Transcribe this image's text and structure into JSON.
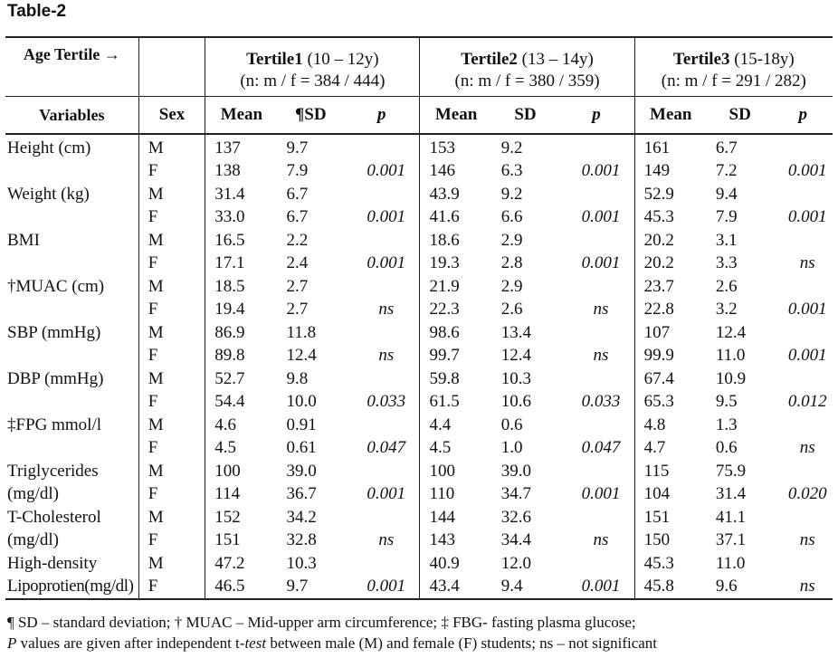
{
  "title": "Table-2",
  "header": {
    "age_tertile": "Age Tertile →",
    "variables": "Variables",
    "sex": "Sex",
    "tertiles": [
      {
        "name": "Tertile1",
        "range": " (10 – 12y)",
        "n": "(n: m / f = 384 / 444)"
      },
      {
        "name": "Tertile2",
        "range": " (13 – 14y)",
        "n": "(n: m / f = 380 / 359)"
      },
      {
        "name": "Tertile3",
        "range": " (15-18y)",
        "n": "(n: m / f = 291 / 282)"
      }
    ],
    "cols": [
      "Mean",
      "¶SD",
      "p",
      "Mean",
      "SD",
      "p",
      "Mean",
      "SD",
      "p"
    ]
  },
  "rows": [
    {
      "var": "Height (cm)",
      "sex": "M",
      "v": [
        "137",
        "9.7",
        "",
        "153",
        "9.2",
        "",
        "161",
        "6.7",
        ""
      ]
    },
    {
      "var": "",
      "sex": "F",
      "v": [
        "138",
        "7.9",
        "0.001",
        "146",
        "6.3",
        "0.001",
        "149",
        "7.2",
        "0.001"
      ]
    },
    {
      "var": "Weight (kg)",
      "sex": "M",
      "v": [
        "31.4",
        "6.7",
        "",
        "43.9",
        "9.2",
        "",
        "52.9",
        "9.4",
        ""
      ]
    },
    {
      "var": "",
      "sex": "F",
      "v": [
        "33.0",
        "6.7",
        "0.001",
        "41.6",
        "6.6",
        "0.001",
        "45.3",
        "7.9",
        "0.001"
      ]
    },
    {
      "var": "BMI",
      "sex": "M",
      "v": [
        "16.5",
        "2.2",
        "",
        "18.6",
        "2.9",
        "",
        "20.2",
        "3.1",
        ""
      ]
    },
    {
      "var": "",
      "sex": "F",
      "v": [
        "17.1",
        "2.4",
        "0.001",
        "19.3",
        "2.8",
        "0.001",
        "20.2",
        "3.3",
        "ns"
      ]
    },
    {
      "var": "†MUAC (cm)",
      "sex": "M",
      "v": [
        "18.5",
        "2.7",
        "",
        "21.9",
        "2.9",
        "",
        "23.7",
        "2.6",
        ""
      ]
    },
    {
      "var": "",
      "sex": "F",
      "v": [
        "19.4",
        "2.7",
        "ns",
        "22.3",
        "2.6",
        "ns",
        "22.8",
        "3.2",
        "0.001"
      ]
    },
    {
      "var": "SBP (mmHg)",
      "sex": "M",
      "v": [
        "86.9",
        "11.8",
        "",
        "98.6",
        "13.4",
        "",
        "107",
        "12.4",
        ""
      ]
    },
    {
      "var": "",
      "sex": "F",
      "v": [
        "89.8",
        "12.4",
        "ns",
        "99.7",
        "12.4",
        "ns",
        "99.9",
        "11.0",
        "0.001"
      ]
    },
    {
      "var": "DBP (mmHg)",
      "sex": "M",
      "v": [
        "52.7",
        "9.8",
        "",
        "59.8",
        "10.3",
        "",
        "67.4",
        "10.9",
        ""
      ]
    },
    {
      "var": "",
      "sex": "F",
      "v": [
        "54.4",
        "10.0",
        "0.033",
        "61.5",
        "10.6",
        "0.033",
        "65.3",
        "9.5",
        "0.012"
      ]
    },
    {
      "var": "‡FPG mmol/l",
      "sex": "M",
      "v": [
        "4.6",
        "0.91",
        "",
        "4.4",
        "0.6",
        "",
        "4.8",
        "1.3",
        ""
      ]
    },
    {
      "var": "",
      "sex": "F",
      "v": [
        "4.5",
        "0.61",
        "0.047",
        "4.5",
        "1.0",
        "0.047",
        "4.7",
        "0.6",
        "ns"
      ]
    },
    {
      "var": "Triglycerides",
      "sex": "M",
      "v": [
        "100",
        "39.0",
        "",
        "100",
        "39.0",
        "",
        "115",
        "75.9",
        ""
      ]
    },
    {
      "var": "(mg/dl)",
      "sex": "F",
      "v": [
        "114",
        "36.7",
        "0.001",
        "110",
        "34.7",
        "0.001",
        "104",
        "31.4",
        "0.020"
      ]
    },
    {
      "var": "T-Cholesterol",
      "sex": "M",
      "v": [
        "152",
        "34.2",
        "",
        "144",
        "32.6",
        "",
        "151",
        "41.1",
        ""
      ]
    },
    {
      "var": "(mg/dl)",
      "sex": "F",
      "v": [
        "151",
        "32.8",
        "ns",
        "143",
        "34.4",
        "ns",
        "150",
        "37.1",
        "ns"
      ]
    },
    {
      "var": "High-density",
      "sex": "M",
      "v": [
        "47.2",
        "10.3",
        "",
        "40.9",
        "12.0",
        "",
        "45.3",
        "11.0",
        ""
      ]
    },
    {
      "var": "Lipoprotien(mg/dl)",
      "sex": "F",
      "v": [
        "46.5",
        "9.7",
        "0.001",
        "43.4",
        "9.4",
        "0.001",
        "45.8",
        "9.6",
        "ns"
      ]
    }
  ],
  "footnotes": {
    "line1": "¶ SD – standard deviation; † MUAC – Mid-upper arm circumference; ‡ FBG- fasting plasma glucose;",
    "line2_p": "P",
    "line2_a": " values are given after independent t-",
    "line2_test": "test",
    "line2_b": " between male (M) and female (F) students; ns – not significant"
  }
}
